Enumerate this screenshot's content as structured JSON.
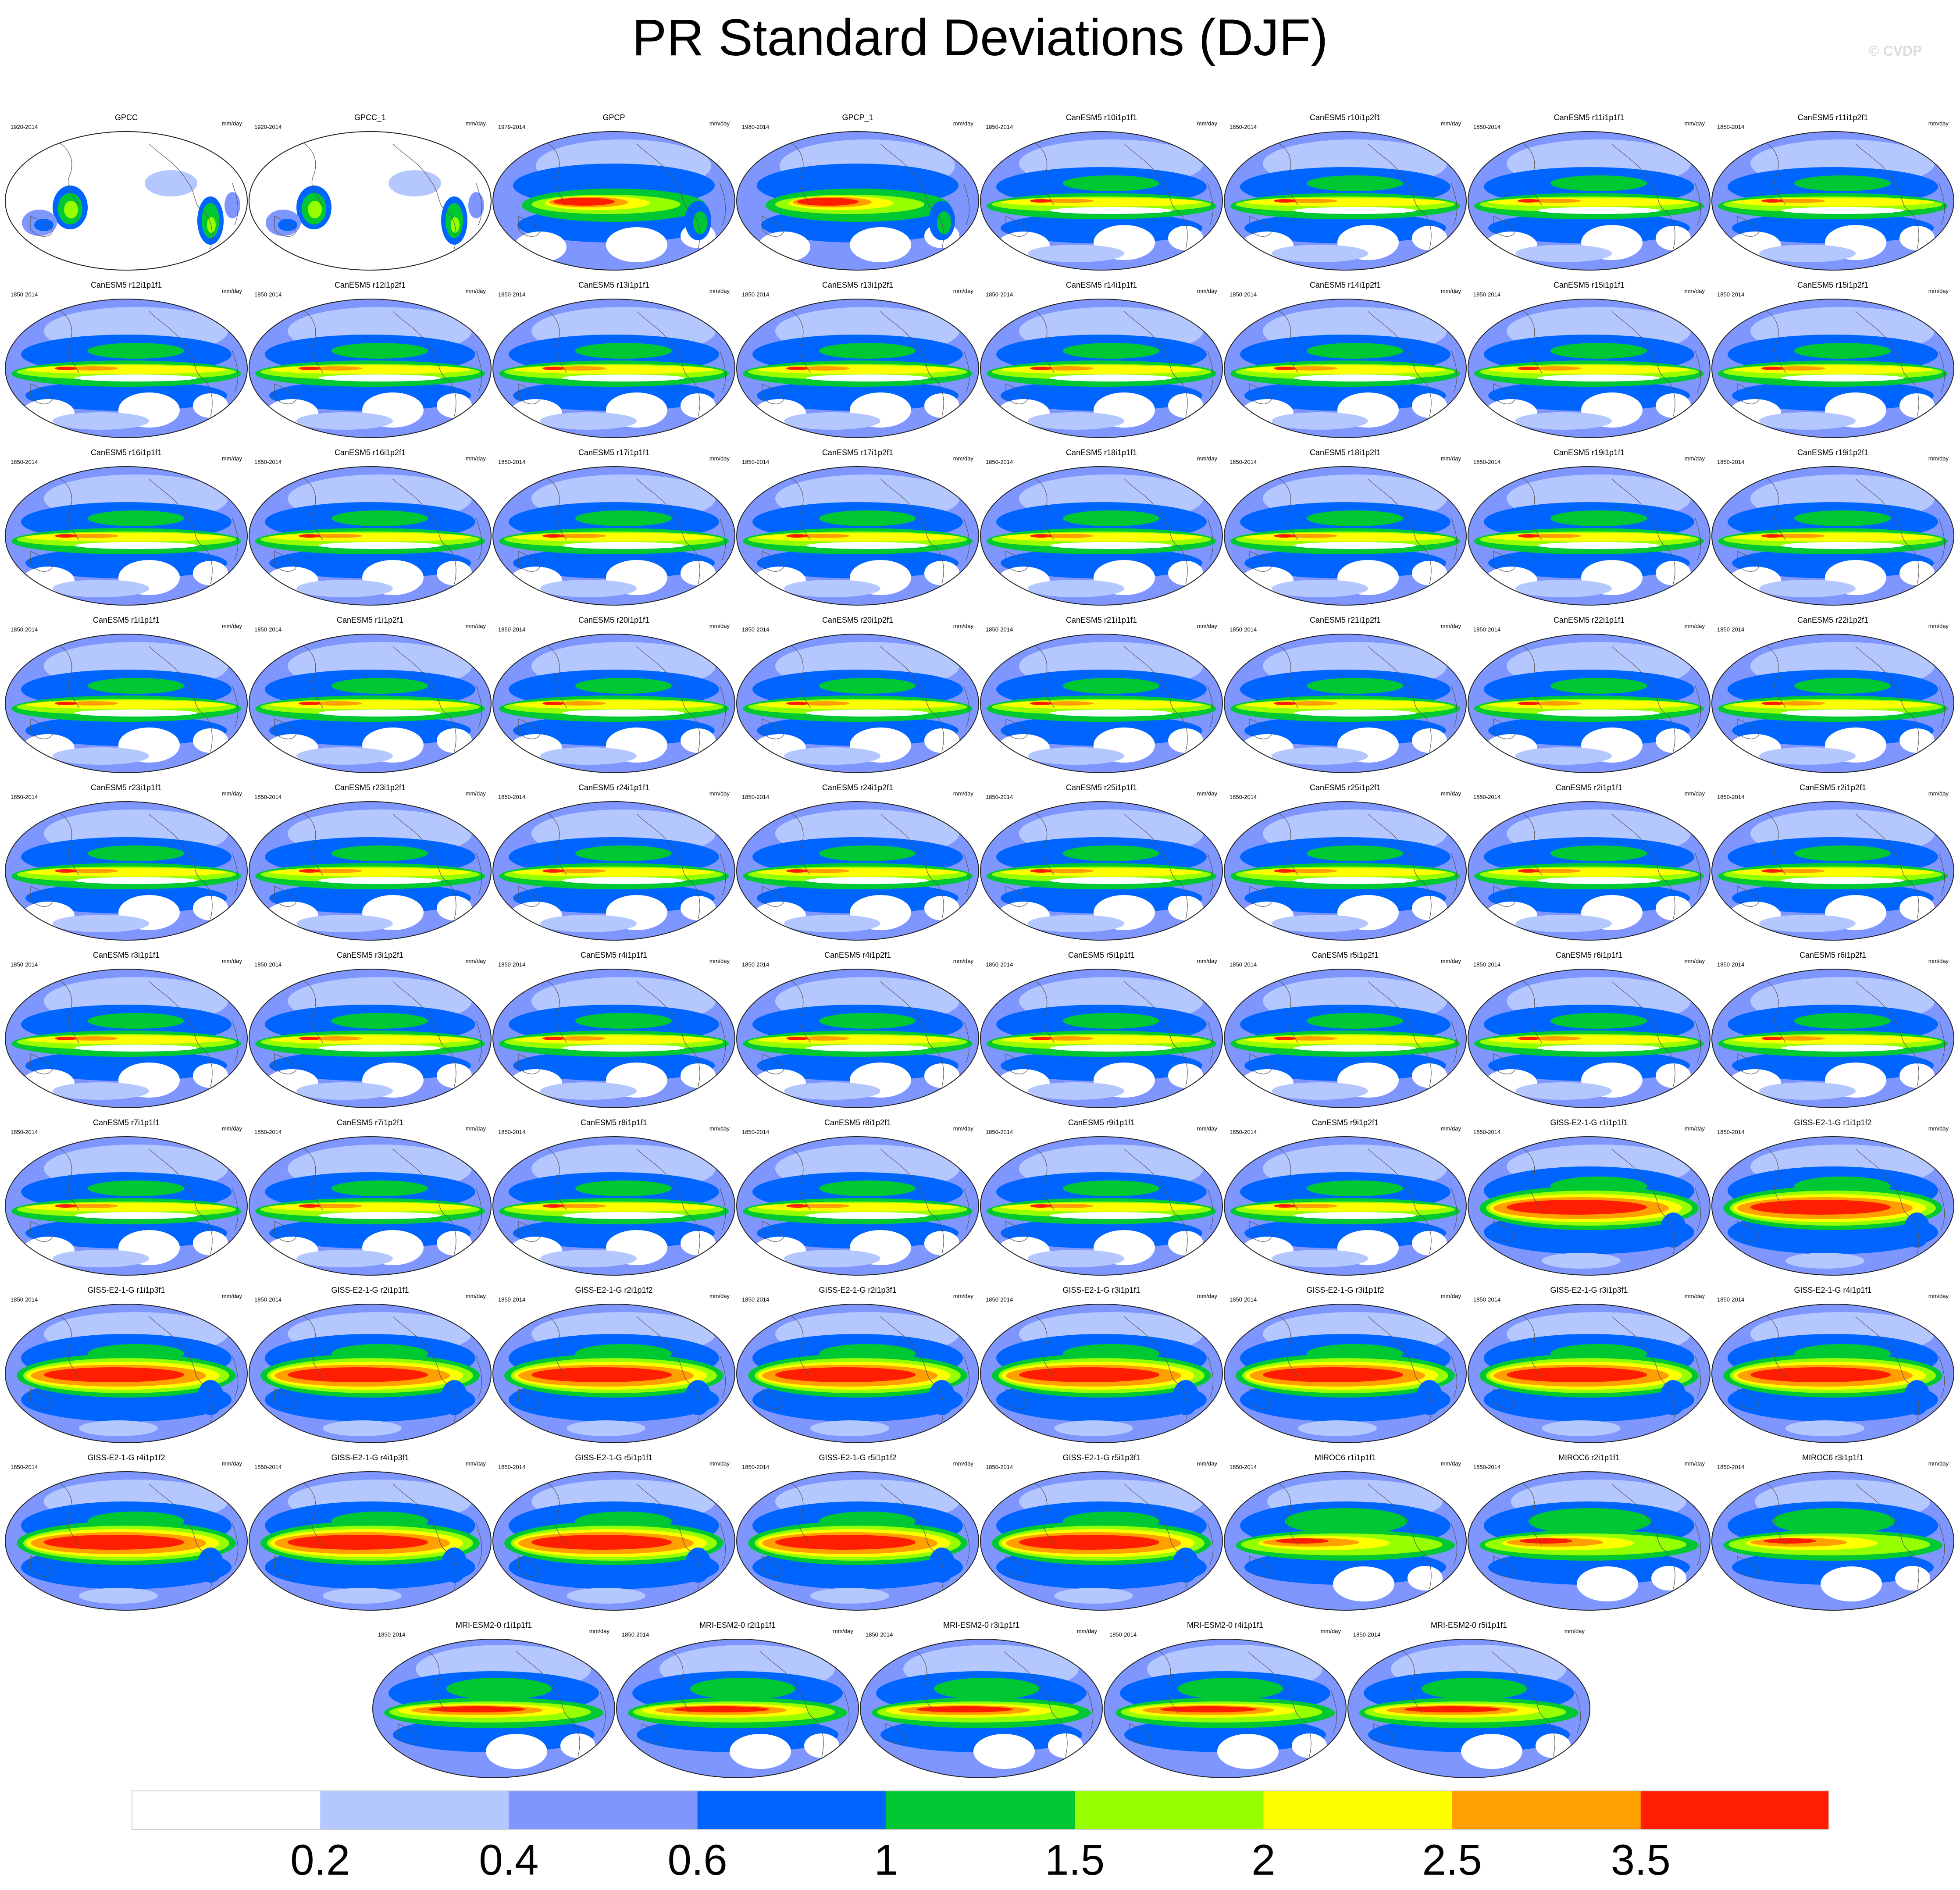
{
  "title": "PR Standard Deviations (DJF)",
  "watermark": "© CVDP",
  "colorbar": {
    "colors": [
      "#ffffff",
      "#b4c8ff",
      "#7f96ff",
      "#0064ff",
      "#00c832",
      "#96ff00",
      "#ffff00",
      "#ffa000",
      "#ff1e00"
    ],
    "labels": [
      "0.2",
      "0.4",
      "0.6",
      "1",
      "1.5",
      "2",
      "2.5",
      "3.5"
    ]
  },
  "panels": [
    {
      "title": "GPCC",
      "years": "1920-2014",
      "units": "mm/day",
      "style": "land"
    },
    {
      "title": "GPCC_1",
      "years": "1920-2014",
      "units": "mm/day",
      "style": "land"
    },
    {
      "title": "GPCP",
      "years": "1979-2014",
      "units": "mm/day",
      "style": "obs"
    },
    {
      "title": "GPCP_1",
      "years": "1980-2014",
      "units": "mm/day",
      "style": "obs"
    },
    {
      "title": "CanESM5 r10i1p1f1",
      "years": "1850-2014",
      "units": "mm/day",
      "style": "can"
    },
    {
      "title": "CanESM5 r10i1p2f1",
      "years": "1850-2014",
      "units": "mm/day",
      "style": "can"
    },
    {
      "title": "CanESM5 r11i1p1f1",
      "years": "1850-2014",
      "units": "mm/day",
      "style": "can"
    },
    {
      "title": "CanESM5 r11i1p2f1",
      "years": "1850-2014",
      "units": "mm/day",
      "style": "can"
    },
    {
      "title": "CanESM5 r12i1p1f1",
      "years": "1850-2014",
      "units": "mm/day",
      "style": "can"
    },
    {
      "title": "CanESM5 r12i1p2f1",
      "years": "1850-2014",
      "units": "mm/day",
      "style": "can"
    },
    {
      "title": "CanESM5 r13i1p1f1",
      "years": "1850-2014",
      "units": "mm/day",
      "style": "can"
    },
    {
      "title": "CanESM5 r13i1p2f1",
      "years": "1850-2014",
      "units": "mm/day",
      "style": "can"
    },
    {
      "title": "CanESM5 r14i1p1f1",
      "years": "1850-2014",
      "units": "mm/day",
      "style": "can"
    },
    {
      "title": "CanESM5 r14i1p2f1",
      "years": "1850-2014",
      "units": "mm/day",
      "style": "can"
    },
    {
      "title": "CanESM5 r15i1p1f1",
      "years": "1850-2014",
      "units": "mm/day",
      "style": "can"
    },
    {
      "title": "CanESM5 r15i1p2f1",
      "years": "1850-2014",
      "units": "mm/day",
      "style": "can"
    },
    {
      "title": "CanESM5 r16i1p1f1",
      "years": "1850-2014",
      "units": "mm/day",
      "style": "can"
    },
    {
      "title": "CanESM5 r16i1p2f1",
      "years": "1850-2014",
      "units": "mm/day",
      "style": "can"
    },
    {
      "title": "CanESM5 r17i1p1f1",
      "years": "1850-2014",
      "units": "mm/day",
      "style": "can"
    },
    {
      "title": "CanESM5 r17i1p2f1",
      "years": "1850-2014",
      "units": "mm/day",
      "style": "can"
    },
    {
      "title": "CanESM5 r18i1p1f1",
      "years": "1850-2014",
      "units": "mm/day",
      "style": "can"
    },
    {
      "title": "CanESM5 r18i1p2f1",
      "years": "1850-2014",
      "units": "mm/day",
      "style": "can"
    },
    {
      "title": "CanESM5 r19i1p1f1",
      "years": "1850-2014",
      "units": "mm/day",
      "style": "can"
    },
    {
      "title": "CanESM5 r19i1p2f1",
      "years": "1850-2014",
      "units": "mm/day",
      "style": "can"
    },
    {
      "title": "CanESM5 r1i1p1f1",
      "years": "1850-2014",
      "units": "mm/day",
      "style": "can"
    },
    {
      "title": "CanESM5 r1i1p2f1",
      "years": "1850-2014",
      "units": "mm/day",
      "style": "can"
    },
    {
      "title": "CanESM5 r20i1p1f1",
      "years": "1850-2014",
      "units": "mm/day",
      "style": "can"
    },
    {
      "title": "CanESM5 r20i1p2f1",
      "years": "1850-2014",
      "units": "mm/day",
      "style": "can"
    },
    {
      "title": "CanESM5 r21i1p1f1",
      "years": "1850-2014",
      "units": "mm/day",
      "style": "can"
    },
    {
      "title": "CanESM5 r21i1p2f1",
      "years": "1850-2014",
      "units": "mm/day",
      "style": "can"
    },
    {
      "title": "CanESM5 r22i1p1f1",
      "years": "1850-2014",
      "units": "mm/day",
      "style": "can"
    },
    {
      "title": "CanESM5 r22i1p2f1",
      "years": "1850-2014",
      "units": "mm/day",
      "style": "can"
    },
    {
      "title": "CanESM5 r23i1p1f1",
      "years": "1850-2014",
      "units": "mm/day",
      "style": "can"
    },
    {
      "title": "CanESM5 r23i1p2f1",
      "years": "1850-2014",
      "units": "mm/day",
      "style": "can"
    },
    {
      "title": "CanESM5 r24i1p1f1",
      "years": "1850-2014",
      "units": "mm/day",
      "style": "can"
    },
    {
      "title": "CanESM5 r24i1p2f1",
      "years": "1850-2014",
      "units": "mm/day",
      "style": "can"
    },
    {
      "title": "CanESM5 r25i1p1f1",
      "years": "1850-2014",
      "units": "mm/day",
      "style": "can"
    },
    {
      "title": "CanESM5 r25i1p2f1",
      "years": "1850-2014",
      "units": "mm/day",
      "style": "can"
    },
    {
      "title": "CanESM5 r2i1p1f1",
      "years": "1850-2014",
      "units": "mm/day",
      "style": "can"
    },
    {
      "title": "CanESM5 r2i1p2f1",
      "years": "1850-2014",
      "units": "mm/day",
      "style": "can"
    },
    {
      "title": "CanESM5 r3i1p1f1",
      "years": "1850-2014",
      "units": "mm/day",
      "style": "can"
    },
    {
      "title": "CanESM5 r3i1p2f1",
      "years": "1850-2014",
      "units": "mm/day",
      "style": "can"
    },
    {
      "title": "CanESM5 r4i1p1f1",
      "years": "1850-2014",
      "units": "mm/day",
      "style": "can"
    },
    {
      "title": "CanESM5 r4i1p2f1",
      "years": "1850-2014",
      "units": "mm/day",
      "style": "can"
    },
    {
      "title": "CanESM5 r5i1p1f1",
      "years": "1850-2014",
      "units": "mm/day",
      "style": "can"
    },
    {
      "title": "CanESM5 r5i1p2f1",
      "years": "1850-2014",
      "units": "mm/day",
      "style": "can"
    },
    {
      "title": "CanESM5 r6i1p1f1",
      "years": "1850-2014",
      "units": "mm/day",
      "style": "can"
    },
    {
      "title": "CanESM5 r6i1p2f1",
      "years": "1850-2014",
      "units": "mm/day",
      "style": "can"
    },
    {
      "title": "CanESM5 r7i1p1f1",
      "years": "1850-2014",
      "units": "mm/day",
      "style": "can"
    },
    {
      "title": "CanESM5 r7i1p2f1",
      "years": "1850-2014",
      "units": "mm/day",
      "style": "can"
    },
    {
      "title": "CanESM5 r8i1p1f1",
      "years": "1850-2014",
      "units": "mm/day",
      "style": "can"
    },
    {
      "title": "CanESM5 r8i1p2f1",
      "years": "1850-2014",
      "units": "mm/day",
      "style": "can"
    },
    {
      "title": "CanESM5 r9i1p1f1",
      "years": "1850-2014",
      "units": "mm/day",
      "style": "can"
    },
    {
      "title": "CanESM5 r9i1p2f1",
      "years": "1850-2014",
      "units": "mm/day",
      "style": "can"
    },
    {
      "title": "GISS-E2-1-G r1i1p1f1",
      "years": "1850-2014",
      "units": "mm/day",
      "style": "giss"
    },
    {
      "title": "GISS-E2-1-G r1i1p1f2",
      "years": "1850-2014",
      "units": "mm/day",
      "style": "giss"
    },
    {
      "title": "GISS-E2-1-G r1i1p3f1",
      "years": "1850-2014",
      "units": "mm/day",
      "style": "giss"
    },
    {
      "title": "GISS-E2-1-G r2i1p1f1",
      "years": "1850-2014",
      "units": "mm/day",
      "style": "giss"
    },
    {
      "title": "GISS-E2-1-G r2i1p1f2",
      "years": "1850-2014",
      "units": "mm/day",
      "style": "giss"
    },
    {
      "title": "GISS-E2-1-G r2i1p3f1",
      "years": "1850-2014",
      "units": "mm/day",
      "style": "giss"
    },
    {
      "title": "GISS-E2-1-G r3i1p1f1",
      "years": "1850-2014",
      "units": "mm/day",
      "style": "giss"
    },
    {
      "title": "GISS-E2-1-G r3i1p1f2",
      "years": "1850-2014",
      "units": "mm/day",
      "style": "giss"
    },
    {
      "title": "GISS-E2-1-G r3i1p3f1",
      "years": "1850-2014",
      "units": "mm/day",
      "style": "giss"
    },
    {
      "title": "GISS-E2-1-G r4i1p1f1",
      "years": "1850-2014",
      "units": "mm/day",
      "style": "giss"
    },
    {
      "title": "GISS-E2-1-G r4i1p1f2",
      "years": "1850-2014",
      "units": "mm/day",
      "style": "giss"
    },
    {
      "title": "GISS-E2-1-G r4i1p3f1",
      "years": "1850-2014",
      "units": "mm/day",
      "style": "giss"
    },
    {
      "title": "GISS-E2-1-G r5i1p1f1",
      "years": "1850-2014",
      "units": "mm/day",
      "style": "giss"
    },
    {
      "title": "GISS-E2-1-G r5i1p1f2",
      "years": "1850-2014",
      "units": "mm/day",
      "style": "giss"
    },
    {
      "title": "GISS-E2-1-G r5i1p3f1",
      "years": "1850-2014",
      "units": "mm/day",
      "style": "giss"
    },
    {
      "title": "MIROC6 r1i1p1f1",
      "years": "1850-2014",
      "units": "mm/day",
      "style": "miroc"
    },
    {
      "title": "MIROC6 r2i1p1f1",
      "years": "1850-2014",
      "units": "mm/day",
      "style": "miroc"
    },
    {
      "title": "MIROC6 r3i1p1f1",
      "years": "1850-2014",
      "units": "mm/day",
      "style": "miroc"
    },
    {
      "title": "MRI-ESM2-0 r1i1p1f1",
      "years": "1850-2014",
      "units": "mm/day",
      "style": "mri"
    },
    {
      "title": "MRI-ESM2-0 r2i1p1f1",
      "years": "1850-2014",
      "units": "mm/day",
      "style": "mri"
    },
    {
      "title": "MRI-ESM2-0 r3i1p1f1",
      "years": "1850-2014",
      "units": "mm/day",
      "style": "mri"
    },
    {
      "title": "MRI-ESM2-0 r4i1p1f1",
      "years": "1850-2014",
      "units": "mm/day",
      "style": "mri"
    },
    {
      "title": "MRI-ESM2-0 r5i1p1f1",
      "years": "1850-2014",
      "units": "mm/day",
      "style": "mri"
    }
  ]
}
